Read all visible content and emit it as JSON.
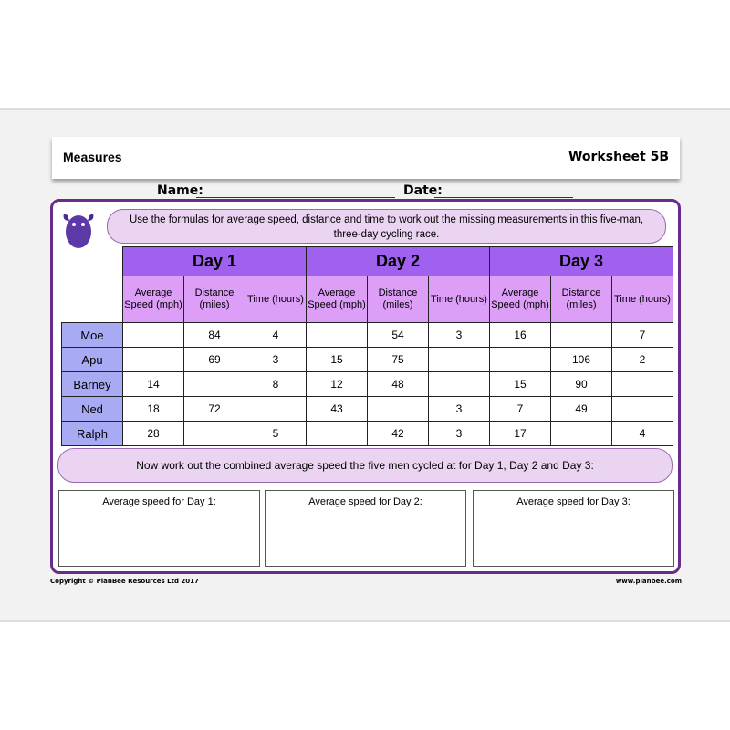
{
  "header": {
    "subject": "Measures",
    "worksheet": "Worksheet 5B"
  },
  "fields": {
    "name_label": "Name:",
    "date_label": "Date:"
  },
  "instructions": "Use the formulas for average speed, distance and time to work out the missing measurements in this five-man, three-day cycling race.",
  "table": {
    "days": [
      "Day 1",
      "Day 2",
      "Day 3"
    ],
    "subheaders": [
      "Average Speed (mph)",
      "Distance (miles)",
      "Time (hours)"
    ],
    "rows": [
      {
        "name": "Moe",
        "values": [
          "",
          "84",
          "4",
          "",
          "54",
          "3",
          "16",
          "",
          "7"
        ]
      },
      {
        "name": "Apu",
        "values": [
          "",
          "69",
          "3",
          "15",
          "75",
          "",
          "",
          "106",
          "2"
        ]
      },
      {
        "name": "Barney",
        "values": [
          "14",
          "",
          "8",
          "12",
          "48",
          "",
          "15",
          "90",
          ""
        ]
      },
      {
        "name": "Ned",
        "values": [
          "18",
          "72",
          "",
          "43",
          "",
          "3",
          "7",
          "49",
          ""
        ]
      },
      {
        "name": "Ralph",
        "values": [
          "28",
          "",
          "5",
          "",
          "42",
          "3",
          "17",
          "",
          "4"
        ]
      }
    ]
  },
  "combined_prompt": "Now work out the combined average speed the five men cycled at for Day 1, Day 2 and Day 3:",
  "answer_boxes": [
    "Average speed for Day 1:",
    "Average speed for Day 2:",
    "Average speed for Day 3:"
  ],
  "footer": {
    "copyright": "Copyright © PlanBee Resources Ltd 2017",
    "website": "www.planbee.com"
  },
  "colors": {
    "day_header": "#a062ee",
    "subheader": "#dc9ef7",
    "name_col": "#a9aaf4",
    "bubble": "#ead4f2",
    "border": "#6a2c8c"
  }
}
